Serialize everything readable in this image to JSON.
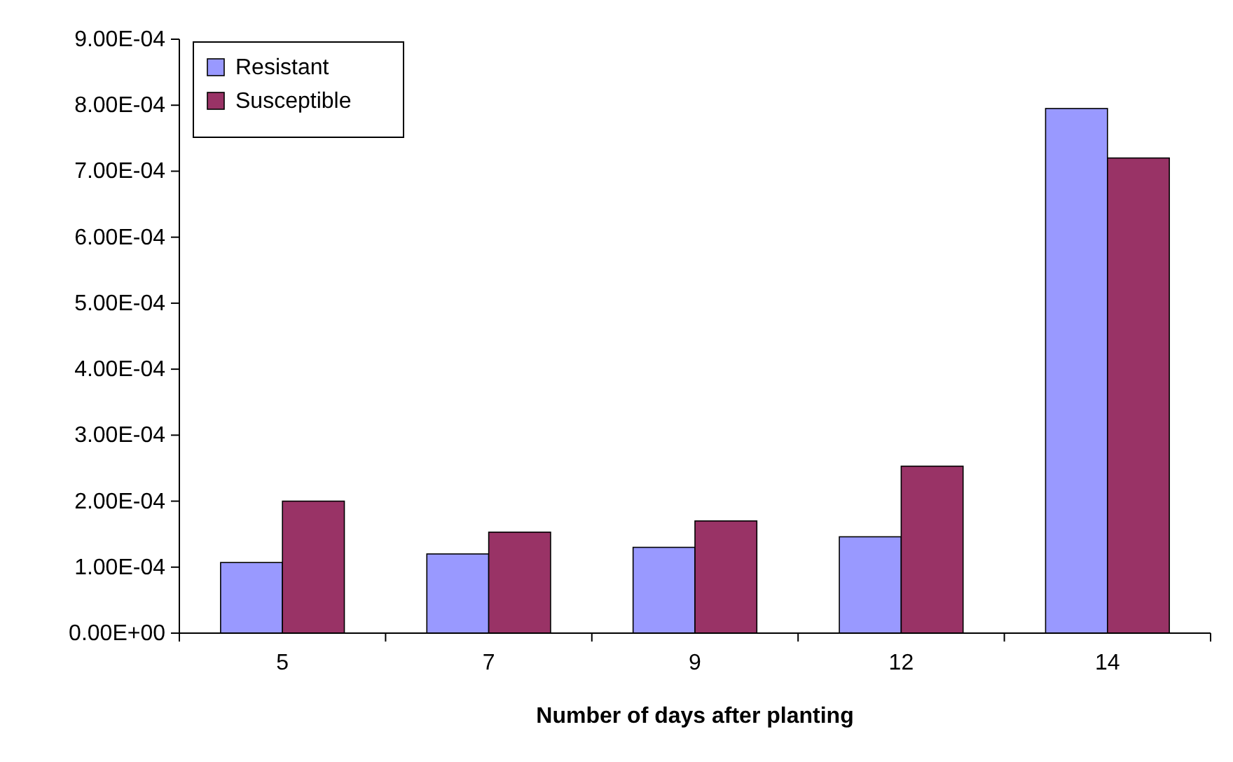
{
  "chart_data": {
    "type": "bar",
    "xlabel": "Number of days after planting",
    "categories": [
      "5",
      "7",
      "9",
      "12",
      "14"
    ],
    "series": [
      {
        "name": "Resistant",
        "color": "#9999ff",
        "values": [
          0.000107,
          0.00012,
          0.00013,
          0.000146,
          0.000795
        ]
      },
      {
        "name": "Susceptible",
        "color": "#993366",
        "values": [
          0.0002,
          0.000153,
          0.00017,
          0.000253,
          0.00072
        ]
      }
    ],
    "ylim": [
      0,
      0.0009
    ],
    "yticks": [
      {
        "value": 0,
        "label": "0.00E+00"
      },
      {
        "value": 0.0001,
        "label": "1.00E-04"
      },
      {
        "value": 0.0002,
        "label": "2.00E-04"
      },
      {
        "value": 0.0003,
        "label": "3.00E-04"
      },
      {
        "value": 0.0004,
        "label": "4.00E-04"
      },
      {
        "value": 0.0005,
        "label": "5.00E-04"
      },
      {
        "value": 0.0006,
        "label": "6.00E-04"
      },
      {
        "value": 0.0007,
        "label": "7.00E-04"
      },
      {
        "value": 0.0008,
        "label": "8.00E-04"
      },
      {
        "value": 0.0009,
        "label": "9.00E-04"
      }
    ],
    "grid": false,
    "legend": "top left"
  }
}
